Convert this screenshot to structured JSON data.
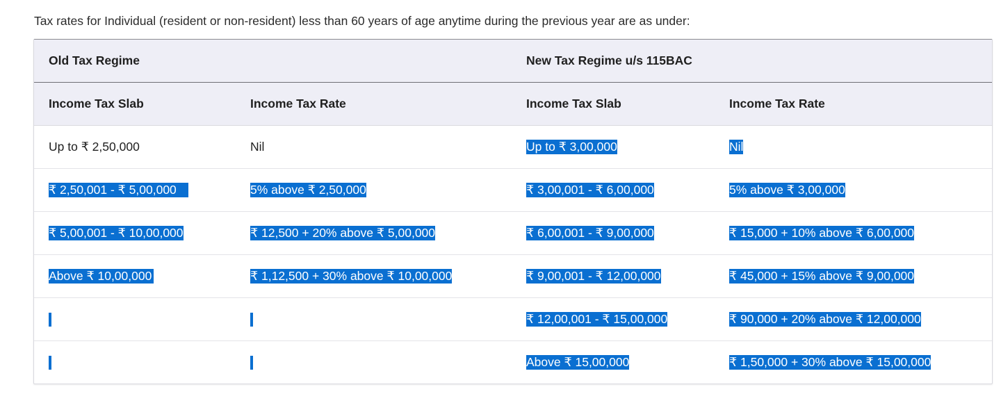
{
  "intro": "Tax rates for Individual (resident or non-resident) less than 60 years of age anytime during the previous year are as under:",
  "table": {
    "regimes": {
      "old": "Old Tax Regime",
      "new": "New Tax Regime u/s 115BAC"
    },
    "headers": [
      "Income Tax Slab",
      "Income Tax Rate",
      "Income Tax Slab",
      "Income Tax Rate"
    ],
    "rows": [
      [
        "Up to ₹ 2,50,000",
        "Nil",
        "Up to ₹ 3,00,000",
        "Nil"
      ],
      [
        "₹ 2,50,001 - ₹ 5,00,000",
        "5% above ₹ 2,50,000",
        "₹ 3,00,001 - ₹ 6,00,000",
        "5% above ₹ 3,00,000"
      ],
      [
        "₹ 5,00,001 - ₹ 10,00,000",
        "₹ 12,500 + 20% above ₹ 5,00,000",
        "₹ 6,00,001 - ₹ 9,00,000",
        "₹ 15,000 + 10% above ₹ 6,00,000"
      ],
      [
        "Above ₹ 10,00,000",
        "₹ 1,12,500 + 30% above ₹ 10,00,000",
        "₹ 9,00,001 - ₹ 12,00,000",
        "₹ 45,000 + 15% above ₹ 9,00,000"
      ],
      [
        "",
        "",
        "₹ 12,00,001 - ₹ 15,00,000",
        "₹ 90,000 + 20% above ₹ 12,00,000"
      ],
      [
        "",
        "",
        "Above ₹ 15,00,000",
        "₹ 1,50,000 + 30% above ₹ 15,00,000"
      ]
    ]
  },
  "colors": {
    "selection": "#0a6fd1",
    "header_bg": "#eeeef6"
  }
}
